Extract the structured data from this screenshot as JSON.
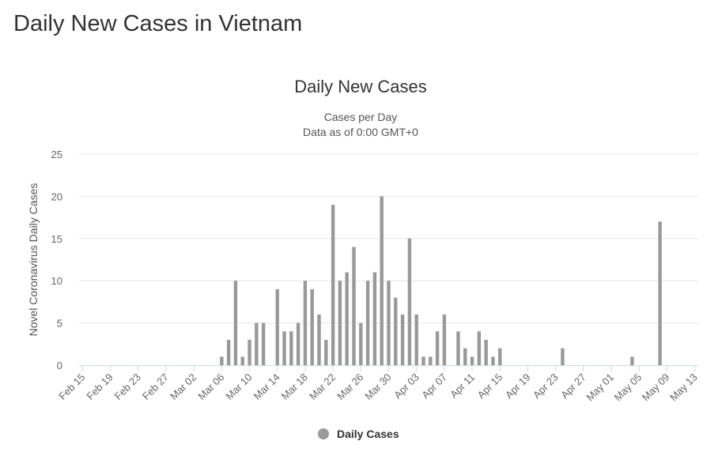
{
  "page": {
    "heading": "Daily New Cases in Vietnam"
  },
  "chart_data": {
    "type": "bar",
    "title": "Daily New Cases",
    "subtitle_lines": [
      "Cases per Day",
      "Data as of 0:00 GMT+0"
    ],
    "ylabel": "Novel Coronavirus Daily Cases",
    "xlabel": "",
    "ylim": [
      0,
      25
    ],
    "y_ticks": [
      0,
      5,
      10,
      15,
      20,
      25
    ],
    "x_ticks": [
      "Feb 15",
      "Feb 19",
      "Feb 23",
      "Feb 27",
      "Mar 02",
      "Mar 06",
      "Mar 10",
      "Mar 14",
      "Mar 18",
      "Mar 22",
      "Mar 26",
      "Mar 30",
      "Apr 03",
      "Apr 07",
      "Apr 11",
      "Apr 15",
      "Apr 19",
      "Apr 23",
      "Apr 27",
      "May 01",
      "May 05",
      "May 09",
      "May 13"
    ],
    "grid": true,
    "legend_position": "bottom-center",
    "bar_color": "#999999",
    "series": [
      {
        "name": "Daily Cases",
        "points": [
          [
            "Mar 06",
            1
          ],
          [
            "Mar 07",
            3
          ],
          [
            "Mar 08",
            10
          ],
          [
            "Mar 09",
            1
          ],
          [
            "Mar 10",
            3
          ],
          [
            "Mar 11",
            5
          ],
          [
            "Mar 12",
            5
          ],
          [
            "Mar 14",
            9
          ],
          [
            "Mar 15",
            4
          ],
          [
            "Mar 16",
            4
          ],
          [
            "Mar 17",
            5
          ],
          [
            "Mar 18",
            10
          ],
          [
            "Mar 19",
            9
          ],
          [
            "Mar 20",
            6
          ],
          [
            "Mar 21",
            3
          ],
          [
            "Mar 22",
            19
          ],
          [
            "Mar 23",
            10
          ],
          [
            "Mar 24",
            11
          ],
          [
            "Mar 25",
            14
          ],
          [
            "Mar 26",
            5
          ],
          [
            "Mar 27",
            10
          ],
          [
            "Mar 28",
            11
          ],
          [
            "Mar 29",
            20
          ],
          [
            "Mar 30",
            10
          ],
          [
            "Mar 31",
            8
          ],
          [
            "Apr 01",
            6
          ],
          [
            "Apr 02",
            15
          ],
          [
            "Apr 03",
            6
          ],
          [
            "Apr 04",
            1
          ],
          [
            "Apr 05",
            1
          ],
          [
            "Apr 06",
            4
          ],
          [
            "Apr 07",
            6
          ],
          [
            "Apr 09",
            4
          ],
          [
            "Apr 10",
            2
          ],
          [
            "Apr 11",
            1
          ],
          [
            "Apr 12",
            4
          ],
          [
            "Apr 13",
            3
          ],
          [
            "Apr 14",
            1
          ],
          [
            "Apr 15",
            2
          ],
          [
            "Apr 24",
            2
          ],
          [
            "May 04",
            1
          ],
          [
            "May 08",
            17
          ]
        ]
      }
    ]
  }
}
